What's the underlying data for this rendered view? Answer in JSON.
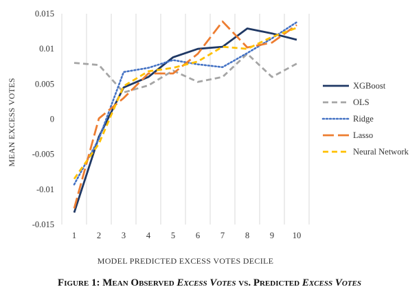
{
  "chart_data": {
    "type": "line",
    "title": "",
    "xlabel": "MODEL PREDICTED EXCESS VOTES DECILE",
    "ylabel": "MEAN EXCESS VOTES",
    "x": [
      1,
      2,
      3,
      4,
      5,
      6,
      7,
      8,
      9,
      10
    ],
    "ylim": [
      -0.015,
      0.015
    ],
    "yticks": [
      -0.015,
      -0.01,
      -0.005,
      0,
      0.005,
      0.01,
      0.015
    ],
    "ytick_labels": [
      "-0.015",
      "-0.01",
      "-0.005",
      "0",
      "0.005",
      "0.01",
      "0.015"
    ],
    "xtick_labels": [
      "1",
      "2",
      "3",
      "4",
      "5",
      "6",
      "7",
      "8",
      "9",
      "10"
    ],
    "grid": "vertical",
    "legend_position": "right",
    "series": [
      {
        "name": "XGBoost",
        "color": "#1f3864",
        "style": "solid",
        "values": [
          -0.0133,
          -0.0025,
          0.0045,
          0.006,
          0.0088,
          0.01,
          0.0103,
          0.0129,
          0.0122,
          0.0113
        ]
      },
      {
        "name": "OLS",
        "color": "#a5a5a5",
        "style": "dash",
        "values": [
          0.008,
          0.0077,
          0.0038,
          0.0048,
          0.0069,
          0.0053,
          0.006,
          0.0093,
          0.006,
          0.0079
        ]
      },
      {
        "name": "Ridge",
        "color": "#4472c4",
        "style": "dot",
        "values": [
          -0.0093,
          -0.0028,
          0.0067,
          0.0073,
          0.0084,
          0.0078,
          0.0074,
          0.0094,
          0.0115,
          0.0138
        ]
      },
      {
        "name": "Lasso",
        "color": "#ed7d31",
        "style": "longdash",
        "values": [
          -0.0127,
          0.0001,
          0.003,
          0.0065,
          0.0065,
          0.0093,
          0.0139,
          0.0102,
          0.0109,
          0.0134
        ]
      },
      {
        "name": "Neural Network",
        "color": "#ffc000",
        "style": "dash",
        "values": [
          -0.0085,
          -0.0035,
          0.0047,
          0.0068,
          0.0073,
          0.0082,
          0.0103,
          0.01,
          0.0117,
          0.013
        ]
      }
    ]
  },
  "caption": {
    "part1": "Figure 1: Mean Observed ",
    "em1": "Excess Votes",
    "part2": " vs. Predicted ",
    "em2": "Excess Votes"
  }
}
